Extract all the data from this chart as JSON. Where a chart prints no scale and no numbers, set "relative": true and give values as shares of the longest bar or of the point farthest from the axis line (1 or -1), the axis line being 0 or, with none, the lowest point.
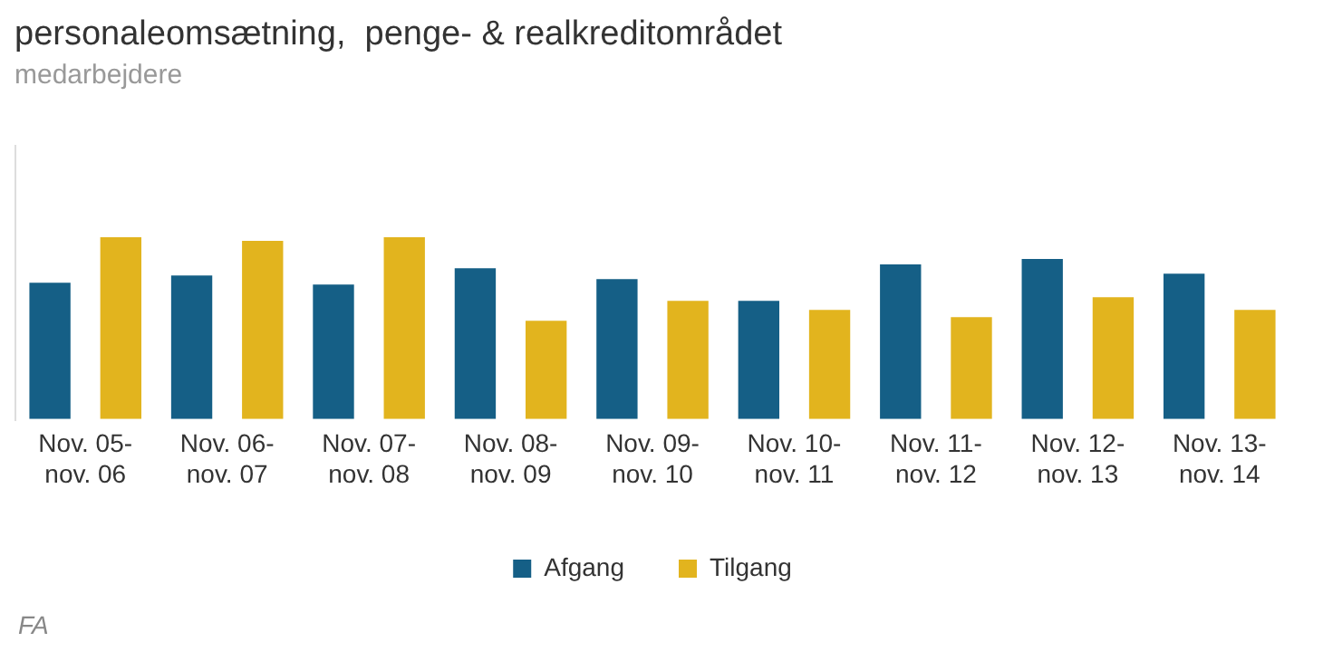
{
  "chart_data": {
    "type": "bar",
    "title": "personaleomsætning,  penge- & realkreditområdet",
    "subtitle": "medarbejdere",
    "categories": [
      "Nov. 05-nov. 06",
      "Nov. 06-nov. 07",
      "Nov. 07-nov. 08",
      "Nov. 08-nov. 09",
      "Nov. 09-nov. 10",
      "Nov. 10-nov. 11",
      "Nov. 11-nov. 12",
      "Nov. 12-nov. 13",
      "Nov. 13-nov. 14"
    ],
    "series": [
      {
        "name": "Afgang",
        "color": "#155f86",
        "values": [
          0.75,
          0.79,
          0.74,
          0.83,
          0.77,
          0.65,
          0.85,
          0.88,
          0.8
        ]
      },
      {
        "name": "Tilgang",
        "color": "#e2b41e",
        "values": [
          1,
          0.98,
          1,
          0.54,
          0.65,
          0.6,
          0.56,
          0.67,
          0.6
        ]
      }
    ],
    "relative": true,
    "legend": "bottom",
    "annotations": [
      "FA"
    ]
  }
}
